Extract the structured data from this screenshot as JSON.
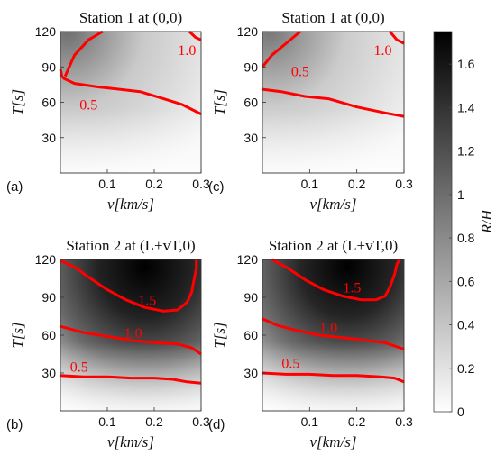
{
  "figure": {
    "colorbar": {
      "label": "R/H",
      "range": [
        0,
        1.75
      ],
      "ticks": [
        0,
        0.2,
        0.4,
        0.6,
        0.8,
        1,
        1.2,
        1.4,
        1.6
      ],
      "tick_labels": [
        "0",
        "0.2",
        "0.4",
        "0.6",
        "0.8",
        "1",
        "1.2",
        "1.4",
        "1.6"
      ],
      "colormap": "gray-reversed (white = 0, black = max)"
    }
  },
  "chart_data": [
    {
      "type": "heatmap",
      "panel": "(a)",
      "title": "Station 1 at (0,0)",
      "xlabel": "v[km/s]",
      "ylabel": "T[s]",
      "xlim": [
        0,
        0.3
      ],
      "ylim": [
        0,
        120
      ],
      "xticks": [
        "0.1",
        "0.2",
        "0.3"
      ],
      "yticks": [
        "30",
        "60",
        "90",
        "120"
      ],
      "contour_color": "#ff0000",
      "contours": [
        {
          "level": "0.5",
          "label_at": [
            0.06,
            54
          ],
          "points": [
            [
              0.0,
              88
            ],
            [
              0.003,
              82
            ],
            [
              0.008,
              80
            ],
            [
              0.03,
              76
            ],
            [
              0.08,
              73
            ],
            [
              0.17,
              69
            ],
            [
              0.22,
              63
            ],
            [
              0.26,
              58
            ],
            [
              0.3,
              50
            ]
          ]
        },
        {
          "level": "1.0",
          "label_at": [
            0.27,
            100
          ],
          "points": [
            [
              0.01,
              82
            ],
            [
              0.03,
              100
            ],
            [
              0.06,
              113
            ],
            [
              0.09,
              120
            ]
          ]
        },
        {
          "level": "",
          "points": [
            [
              0.275,
              120
            ],
            [
              0.288,
              115
            ],
            [
              0.3,
              113
            ]
          ]
        }
      ]
    },
    {
      "type": "heatmap",
      "panel": "(c)",
      "title": "Station 1 at (0,0)",
      "xlabel": "v[km/s]",
      "ylabel": "T[s]",
      "xlim": [
        0,
        0.3
      ],
      "ylim": [
        0,
        120
      ],
      "xticks": [
        "0.1",
        "0.2",
        "0.3"
      ],
      "yticks": [
        "30",
        "60",
        "90",
        "120"
      ],
      "contour_color": "#ff0000",
      "contours": [
        {
          "level": "0.5",
          "label_at": [
            0.08,
            82
          ],
          "points": [
            [
              0.0,
              71
            ],
            [
              0.04,
              69
            ],
            [
              0.09,
              65
            ],
            [
              0.14,
              63
            ],
            [
              0.2,
              56
            ],
            [
              0.26,
              51
            ],
            [
              0.3,
              48
            ]
          ]
        },
        {
          "level": "1.0",
          "label_at": [
            0.255,
            100
          ],
          "points": [
            [
              0.0,
              90
            ],
            [
              0.02,
              100
            ],
            [
              0.05,
              110
            ],
            [
              0.08,
              120
            ]
          ]
        },
        {
          "level": "",
          "points": [
            [
              0.27,
              120
            ],
            [
              0.285,
              113
            ],
            [
              0.3,
              110
            ]
          ]
        }
      ]
    },
    {
      "type": "heatmap",
      "panel": "(b)",
      "title": "Station 2 at (L+vT,0)",
      "xlabel": "v[km/s]",
      "ylabel": "T[s]",
      "xlim": [
        0,
        0.3
      ],
      "ylim": [
        0,
        120
      ],
      "xticks": [
        "0.1",
        "0.2",
        "0.3"
      ],
      "yticks": [
        "30",
        "60",
        "90",
        "120"
      ],
      "contour_color": "#ff0000",
      "contours": [
        {
          "level": "0.5",
          "label_at": [
            0.04,
            31
          ],
          "points": [
            [
              0.0,
              28
            ],
            [
              0.05,
              27
            ],
            [
              0.1,
              27
            ],
            [
              0.15,
              26
            ],
            [
              0.2,
              26
            ],
            [
              0.24,
              25
            ],
            [
              0.27,
              23
            ],
            [
              0.3,
              22
            ]
          ]
        },
        {
          "level": "1.0",
          "label_at": [
            0.155,
            58
          ],
          "points": [
            [
              0.0,
              67
            ],
            [
              0.05,
              62
            ],
            [
              0.1,
              59
            ],
            [
              0.15,
              56
            ],
            [
              0.2,
              54
            ],
            [
              0.25,
              53
            ],
            [
              0.28,
              50
            ],
            [
              0.3,
              45
            ]
          ]
        },
        {
          "level": "1.5",
          "label_at": [
            0.185,
            84
          ],
          "points": [
            [
              0.0,
              119
            ],
            [
              0.03,
              114
            ],
            [
              0.06,
              106
            ],
            [
              0.1,
              96
            ],
            [
              0.14,
              88
            ],
            [
              0.18,
              82
            ],
            [
              0.22,
              79
            ],
            [
              0.25,
              80
            ],
            [
              0.27,
              86
            ],
            [
              0.28,
              94
            ],
            [
              0.285,
              104
            ],
            [
              0.29,
              113
            ],
            [
              0.29,
              120
            ]
          ]
        }
      ]
    },
    {
      "type": "heatmap",
      "panel": "(d)",
      "title": "Station 2 at (L+vT,0)",
      "xlabel": "v[km/s]",
      "ylabel": "T[s]",
      "xlim": [
        0,
        0.3
      ],
      "ylim": [
        0,
        120
      ],
      "xticks": [
        "0.1",
        "0.2",
        "0.3"
      ],
      "yticks": [
        "30",
        "60",
        "90",
        "120"
      ],
      "contour_color": "#ff0000",
      "contours": [
        {
          "level": "0.5",
          "label_at": [
            0.06,
            34
          ],
          "points": [
            [
              0.0,
              30
            ],
            [
              0.05,
              29
            ],
            [
              0.1,
              29
            ],
            [
              0.15,
              28
            ],
            [
              0.2,
              28
            ],
            [
              0.25,
              27
            ],
            [
              0.28,
              26
            ],
            [
              0.3,
              23
            ]
          ]
        },
        {
          "level": "1.0",
          "label_at": [
            0.14,
            62
          ],
          "points": [
            [
              0.0,
              73
            ],
            [
              0.03,
              68
            ],
            [
              0.07,
              64
            ],
            [
              0.12,
              60
            ],
            [
              0.17,
              58
            ],
            [
              0.22,
              56
            ],
            [
              0.26,
              54
            ],
            [
              0.3,
              49
            ]
          ]
        },
        {
          "level": "1.5",
          "label_at": [
            0.19,
            94
          ],
          "points": [
            [
              0.02,
              120
            ],
            [
              0.05,
              114
            ],
            [
              0.09,
              104
            ],
            [
              0.13,
              96
            ],
            [
              0.17,
              91
            ],
            [
              0.21,
              88
            ],
            [
              0.24,
              88
            ],
            [
              0.26,
              91
            ],
            [
              0.27,
              98
            ],
            [
              0.28,
              108
            ],
            [
              0.285,
              116
            ],
            [
              0.29,
              120
            ]
          ]
        }
      ]
    }
  ]
}
